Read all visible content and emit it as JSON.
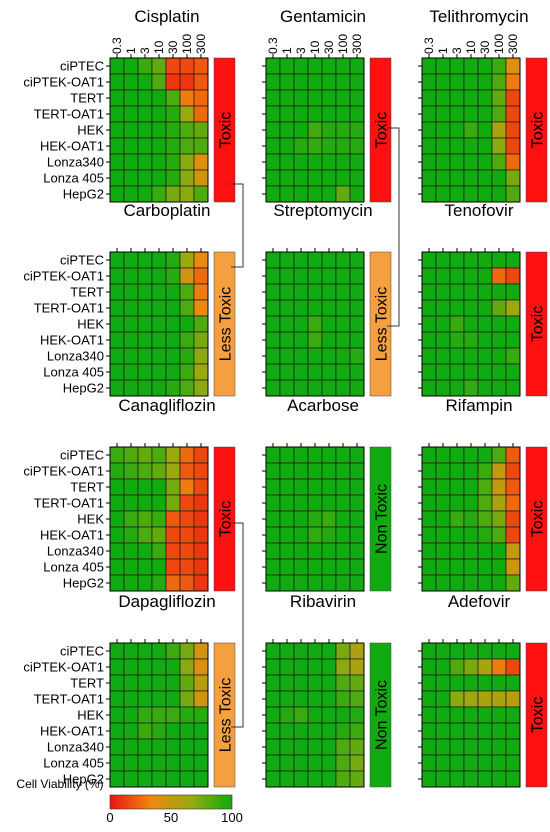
{
  "chart_data": {
    "type": "heatmap",
    "concentrations": [
      "0.3",
      "1",
      "3",
      "10",
      "30",
      "100",
      "300"
    ],
    "cell_lines": [
      "ciPTEC",
      "ciPTEK-OAT1",
      "TERT",
      "TERT-OAT1",
      "HEK",
      "HEK-OAT1",
      "Lonza340",
      "Lonza 405",
      "HepG2"
    ],
    "colorbar": {
      "title": "Cell Viability (%)",
      "ticks": [
        "0",
        "50",
        "100"
      ],
      "min": 0,
      "max": 100,
      "colors": [
        "#ee1111",
        "#ee8811",
        "#99aa11",
        "#11aa11"
      ]
    },
    "classification_colors": {
      "Toxic": "#ff1111",
      "Less Toxic": "#f5a040",
      "Non Toxic": "#11aa11"
    },
    "panels": [
      {
        "name": "Cisplatin",
        "classification": "Toxic",
        "values": [
          [
            100,
            100,
            90,
            80,
            15,
            15,
            20
          ],
          [
            100,
            100,
            100,
            85,
            10,
            10,
            20
          ],
          [
            100,
            100,
            100,
            100,
            85,
            30,
            25
          ],
          [
            100,
            100,
            100,
            100,
            95,
            65,
            25
          ],
          [
            100,
            100,
            100,
            100,
            95,
            85,
            80
          ],
          [
            100,
            100,
            100,
            100,
            95,
            85,
            85
          ],
          [
            100,
            100,
            100,
            100,
            95,
            70,
            40
          ],
          [
            100,
            100,
            100,
            100,
            95,
            70,
            45
          ],
          [
            100,
            100,
            100,
            90,
            75,
            70,
            85
          ]
        ]
      },
      {
        "name": "Gentamicin",
        "classification": "Toxic",
        "values": [
          [
            100,
            100,
            100,
            100,
            100,
            100,
            100
          ],
          [
            100,
            100,
            100,
            100,
            100,
            100,
            100
          ],
          [
            100,
            100,
            100,
            100,
            100,
            100,
            100
          ],
          [
            100,
            100,
            100,
            100,
            100,
            100,
            100
          ],
          [
            100,
            100,
            100,
            88,
            95,
            95,
            95
          ],
          [
            100,
            100,
            95,
            92,
            95,
            95,
            95
          ],
          [
            100,
            100,
            100,
            100,
            100,
            100,
            100
          ],
          [
            100,
            100,
            100,
            100,
            100,
            100,
            100
          ],
          [
            100,
            100,
            100,
            100,
            100,
            80,
            100
          ]
        ]
      },
      {
        "name": "Telithromycin",
        "classification": "Toxic",
        "values": [
          [
            100,
            100,
            100,
            100,
            100,
            90,
            40
          ],
          [
            100,
            100,
            100,
            100,
            100,
            85,
            30
          ],
          [
            100,
            100,
            100,
            100,
            100,
            80,
            15
          ],
          [
            100,
            100,
            100,
            100,
            100,
            85,
            15
          ],
          [
            100,
            100,
            100,
            90,
            100,
            60,
            15
          ],
          [
            100,
            100,
            100,
            100,
            100,
            70,
            15
          ],
          [
            100,
            100,
            100,
            100,
            100,
            85,
            25
          ],
          [
            100,
            100,
            100,
            100,
            100,
            100,
            75
          ],
          [
            100,
            100,
            100,
            100,
            100,
            100,
            85
          ]
        ]
      },
      {
        "name": "Carboplatin",
        "classification": "Less Toxic",
        "values": [
          [
            100,
            100,
            100,
            100,
            95,
            65,
            35
          ],
          [
            100,
            100,
            100,
            100,
            95,
            45,
            25
          ],
          [
            100,
            100,
            100,
            100,
            100,
            85,
            30
          ],
          [
            100,
            100,
            100,
            100,
            100,
            85,
            35
          ],
          [
            100,
            100,
            100,
            100,
            100,
            100,
            85
          ],
          [
            100,
            100,
            100,
            100,
            100,
            90,
            75
          ],
          [
            100,
            100,
            100,
            100,
            100,
            95,
            70
          ],
          [
            100,
            100,
            100,
            100,
            100,
            90,
            65
          ],
          [
            100,
            100,
            100,
            100,
            95,
            85,
            70
          ]
        ]
      },
      {
        "name": "Streptomycin",
        "classification": "Less Toxic",
        "values": [
          [
            100,
            100,
            100,
            100,
            100,
            100,
            100
          ],
          [
            100,
            100,
            100,
            100,
            100,
            100,
            100
          ],
          [
            100,
            100,
            100,
            100,
            100,
            100,
            100
          ],
          [
            100,
            100,
            100,
            100,
            100,
            100,
            100
          ],
          [
            100,
            100,
            100,
            90,
            100,
            100,
            100
          ],
          [
            100,
            100,
            100,
            90,
            100,
            100,
            100
          ],
          [
            100,
            100,
            100,
            100,
            100,
            100,
            95
          ],
          [
            100,
            100,
            100,
            100,
            100,
            100,
            100
          ],
          [
            100,
            100,
            100,
            100,
            100,
            100,
            100
          ]
        ]
      },
      {
        "name": "Tenofovir",
        "classification": "Toxic",
        "values": [
          [
            100,
            100,
            100,
            100,
            100,
            100,
            100
          ],
          [
            100,
            100,
            100,
            100,
            100,
            25,
            15
          ],
          [
            100,
            100,
            100,
            100,
            100,
            100,
            100
          ],
          [
            100,
            100,
            100,
            100,
            100,
            80,
            65
          ],
          [
            100,
            100,
            90,
            100,
            100,
            100,
            100
          ],
          [
            100,
            100,
            95,
            95,
            100,
            100,
            100
          ],
          [
            100,
            100,
            100,
            100,
            100,
            100,
            90
          ],
          [
            100,
            100,
            100,
            100,
            100,
            100,
            100
          ],
          [
            100,
            100,
            100,
            92,
            100,
            100,
            100
          ]
        ]
      },
      {
        "name": "Canagliflozin",
        "classification": "Toxic",
        "values": [
          [
            90,
            85,
            80,
            85,
            65,
            25,
            15
          ],
          [
            95,
            90,
            85,
            80,
            65,
            20,
            15
          ],
          [
            100,
            100,
            100,
            100,
            75,
            30,
            15
          ],
          [
            100,
            100,
            100,
            100,
            75,
            15,
            10
          ],
          [
            100,
            90,
            85,
            90,
            20,
            15,
            10
          ],
          [
            100,
            95,
            85,
            80,
            15,
            15,
            10
          ],
          [
            100,
            100,
            100,
            90,
            15,
            15,
            10
          ],
          [
            100,
            100,
            100,
            100,
            15,
            15,
            10
          ],
          [
            100,
            100,
            100,
            95,
            25,
            20,
            10
          ]
        ]
      },
      {
        "name": "Acarbose",
        "classification": "Non Toxic",
        "values": [
          [
            100,
            100,
            100,
            100,
            100,
            100,
            100
          ],
          [
            100,
            100,
            100,
            100,
            100,
            100,
            100
          ],
          [
            100,
            100,
            100,
            100,
            100,
            100,
            100
          ],
          [
            100,
            100,
            100,
            100,
            100,
            100,
            100
          ],
          [
            100,
            100,
            100,
            95,
            90,
            100,
            100
          ],
          [
            100,
            100,
            100,
            92,
            95,
            100,
            100
          ],
          [
            100,
            100,
            100,
            100,
            100,
            100,
            100
          ],
          [
            100,
            100,
            100,
            100,
            100,
            100,
            100
          ],
          [
            100,
            100,
            100,
            100,
            100,
            100,
            100
          ]
        ]
      },
      {
        "name": "Rifampin",
        "classification": "Toxic",
        "values": [
          [
            100,
            100,
            100,
            100,
            100,
            85,
            20
          ],
          [
            100,
            100,
            100,
            100,
            90,
            50,
            15
          ],
          [
            100,
            100,
            100,
            100,
            85,
            50,
            20
          ],
          [
            100,
            100,
            100,
            100,
            85,
            60,
            25
          ],
          [
            100,
            100,
            90,
            95,
            85,
            75,
            15
          ],
          [
            100,
            100,
            100,
            100,
            95,
            85,
            15
          ],
          [
            100,
            100,
            100,
            100,
            100,
            100,
            50
          ],
          [
            100,
            100,
            100,
            100,
            100,
            100,
            45
          ],
          [
            100,
            100,
            100,
            100,
            100,
            100,
            80
          ]
        ]
      },
      {
        "name": "Dapagliflozin",
        "classification": "Less Toxic",
        "values": [
          [
            100,
            100,
            100,
            100,
            90,
            75,
            45
          ],
          [
            100,
            100,
            100,
            100,
            100,
            70,
            40
          ],
          [
            100,
            100,
            100,
            100,
            100,
            80,
            55
          ],
          [
            100,
            100,
            100,
            100,
            100,
            75,
            45
          ],
          [
            100,
            100,
            92,
            90,
            90,
            95,
            95
          ],
          [
            100,
            100,
            90,
            95,
            100,
            100,
            100
          ],
          [
            100,
            100,
            100,
            100,
            100,
            100,
            100
          ],
          [
            100,
            100,
            100,
            100,
            100,
            100,
            100
          ],
          [
            100,
            100,
            100,
            100,
            100,
            100,
            100
          ]
        ]
      },
      {
        "name": "Ribavirin",
        "classification": "Non Toxic",
        "values": [
          [
            100,
            100,
            100,
            100,
            100,
            75,
            60
          ],
          [
            100,
            100,
            100,
            100,
            100,
            70,
            60
          ],
          [
            100,
            100,
            100,
            100,
            100,
            85,
            80
          ],
          [
            100,
            100,
            100,
            100,
            100,
            90,
            85
          ],
          [
            100,
            95,
            90,
            100,
            100,
            100,
            95
          ],
          [
            100,
            100,
            100,
            100,
            100,
            95,
            90
          ],
          [
            100,
            100,
            100,
            100,
            100,
            85,
            80
          ],
          [
            100,
            100,
            100,
            100,
            100,
            85,
            75
          ],
          [
            100,
            100,
            100,
            100,
            100,
            85,
            80
          ]
        ]
      },
      {
        "name": "Adefovir",
        "classification": "Toxic",
        "values": [
          [
            100,
            100,
            100,
            100,
            100,
            100,
            100
          ],
          [
            100,
            100,
            85,
            75,
            60,
            30,
            15
          ],
          [
            100,
            100,
            100,
            100,
            100,
            100,
            100
          ],
          [
            100,
            100,
            70,
            65,
            60,
            60,
            55
          ],
          [
            100,
            100,
            100,
            100,
            100,
            100,
            100
          ],
          [
            100,
            100,
            100,
            100,
            100,
            100,
            100
          ],
          [
            100,
            100,
            100,
            100,
            100,
            100,
            100
          ],
          [
            100,
            100,
            100,
            100,
            100,
            100,
            100
          ],
          [
            100,
            100,
            100,
            100,
            100,
            100,
            100
          ]
        ]
      }
    ]
  }
}
